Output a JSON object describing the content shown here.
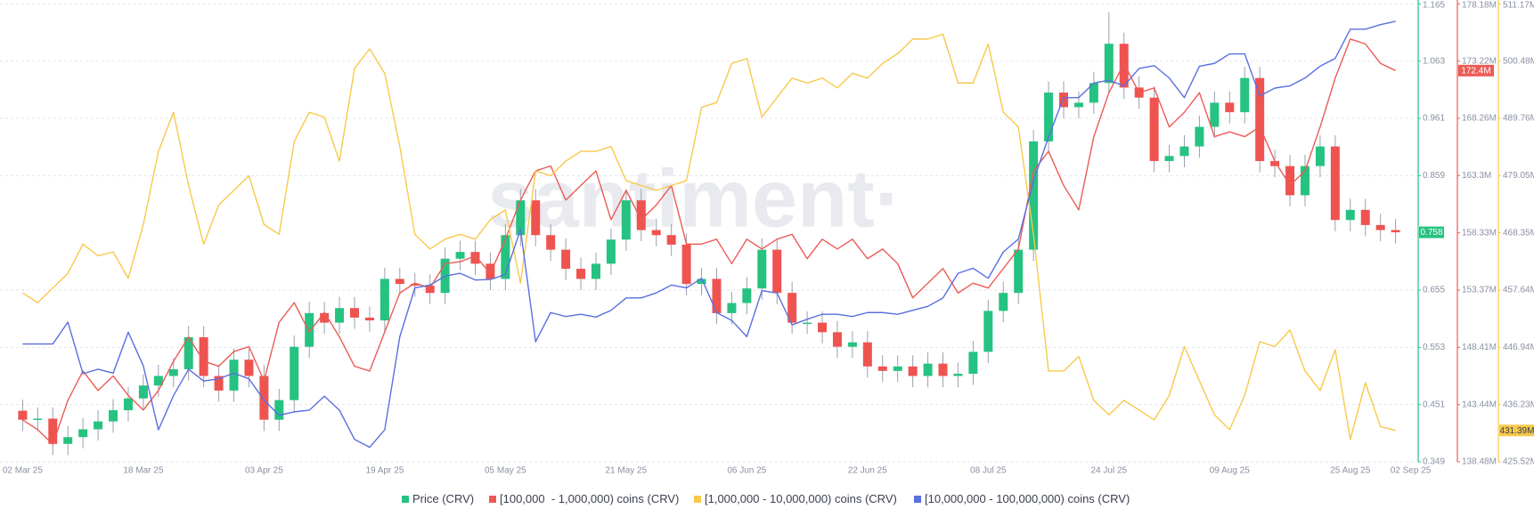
{
  "chart_data": {
    "type": "candlestick",
    "watermark": "santiment·",
    "grid": true,
    "x": [
      "2025-03-02",
      "2025-03-04",
      "2025-03-06",
      "2025-03-08",
      "2025-03-10",
      "2025-03-12",
      "2025-03-14",
      "2025-03-16",
      "2025-03-18",
      "2025-03-20",
      "2025-03-22",
      "2025-03-24",
      "2025-03-26",
      "2025-03-28",
      "2025-03-30",
      "2025-04-01",
      "2025-04-03",
      "2025-04-05",
      "2025-04-07",
      "2025-04-09",
      "2025-04-11",
      "2025-04-13",
      "2025-04-15",
      "2025-04-17",
      "2025-04-19",
      "2025-04-21",
      "2025-04-23",
      "2025-04-25",
      "2025-04-27",
      "2025-04-29",
      "2025-05-01",
      "2025-05-03",
      "2025-05-05",
      "2025-05-07",
      "2025-05-09",
      "2025-05-11",
      "2025-05-13",
      "2025-05-15",
      "2025-05-17",
      "2025-05-19",
      "2025-05-21",
      "2025-05-23",
      "2025-05-25",
      "2025-05-27",
      "2025-05-29",
      "2025-05-31",
      "2025-06-02",
      "2025-06-04",
      "2025-06-06",
      "2025-06-08",
      "2025-06-10",
      "2025-06-12",
      "2025-06-14",
      "2025-06-16",
      "2025-06-18",
      "2025-06-20",
      "2025-06-22",
      "2025-06-24",
      "2025-06-26",
      "2025-06-28",
      "2025-06-30",
      "2025-07-02",
      "2025-07-04",
      "2025-07-06",
      "2025-07-08",
      "2025-07-10",
      "2025-07-12",
      "2025-07-14",
      "2025-07-16",
      "2025-07-18",
      "2025-07-20",
      "2025-07-22",
      "2025-07-24",
      "2025-07-26",
      "2025-07-28",
      "2025-07-30",
      "2025-08-01",
      "2025-08-03",
      "2025-08-05",
      "2025-08-07",
      "2025-08-09",
      "2025-08-11",
      "2025-08-13",
      "2025-08-15",
      "2025-08-17",
      "2025-08-19",
      "2025-08-21",
      "2025-08-23",
      "2025-08-25",
      "2025-08-27",
      "2025-08-29",
      "2025-08-31"
    ],
    "xlim": [
      "2025-02-27",
      "2025-09-03"
    ],
    "xticks": [
      {
        "value": "2025-03-02",
        "label": "02 Mar 25"
      },
      {
        "value": "2025-03-18",
        "label": "18 Mar 25"
      },
      {
        "value": "2025-04-03",
        "label": "03 Apr 25"
      },
      {
        "value": "2025-04-19",
        "label": "19 Apr 25"
      },
      {
        "value": "2025-05-05",
        "label": "05 May 25"
      },
      {
        "value": "2025-05-21",
        "label": "21 May 25"
      },
      {
        "value": "2025-06-06",
        "label": "06 Jun 25"
      },
      {
        "value": "2025-06-22",
        "label": "22 Jun 25"
      },
      {
        "value": "2025-07-08",
        "label": "08 Jul 25"
      },
      {
        "value": "2025-07-24",
        "label": "24 Jul 25"
      },
      {
        "value": "2025-08-09",
        "label": "09 Aug 25"
      },
      {
        "value": "2025-08-25",
        "label": "25 Aug 25"
      },
      {
        "value": "2025-09-02",
        "label": "02 Sep 25"
      }
    ],
    "ylim": [
      0.349,
      1.165
    ],
    "yticks": [
      0.349,
      0.451,
      0.553,
      0.655,
      0.859,
      0.961,
      1.063,
      1.165
    ],
    "y2lim": [
      138480000,
      178180000
    ],
    "y2ticks": [
      {
        "value": 138480000,
        "label": "138.48M"
      },
      {
        "value": 143440000,
        "label": "143.44M"
      },
      {
        "value": 148410000,
        "label": "148.41M"
      },
      {
        "value": 153370000,
        "label": "153.37M"
      },
      {
        "value": 158330000,
        "label": "158.33M"
      },
      {
        "value": 163300000,
        "label": "163.3M"
      },
      {
        "value": 168260000,
        "label": "168.26M"
      },
      {
        "value": 173220000,
        "label": "173.22M"
      },
      {
        "value": 178180000,
        "label": "178.18M"
      }
    ],
    "y3lim": [
      425520000,
      511170000
    ],
    "y3ticks": [
      {
        "value": 425520000,
        "label": "425.52M"
      },
      {
        "value": 436230000,
        "label": "436.23M"
      },
      {
        "value": 446940000,
        "label": "446.94M"
      },
      {
        "value": 457640000,
        "label": "457.64M"
      },
      {
        "value": 468350000,
        "label": "468.35M"
      },
      {
        "value": 479050000,
        "label": "479.05M"
      },
      {
        "value": 489760000,
        "label": "489.76M"
      },
      {
        "value": 500480000,
        "label": "500.48M"
      },
      {
        "value": 511170000,
        "label": "511.17M"
      }
    ],
    "series": [
      {
        "name": "Price (CRV)",
        "type": "candlestick",
        "axis": "y",
        "color": "#26c281",
        "down_color": "#ef5350",
        "current": 0.758,
        "open": [
          0.44,
          0.424,
          0.426,
          0.381,
          0.393,
          0.407,
          0.421,
          0.441,
          0.462,
          0.485,
          0.502,
          0.514,
          0.571,
          0.502,
          0.476,
          0.531,
          0.502,
          0.424,
          0.459,
          0.554,
          0.614,
          0.597,
          0.623,
          0.606,
          0.601,
          0.675,
          0.666,
          0.663,
          0.65,
          0.711,
          0.723,
          0.702,
          0.675,
          0.753,
          0.815,
          0.753,
          0.727,
          0.693,
          0.675,
          0.702,
          0.745,
          0.815,
          0.762,
          0.753,
          0.736,
          0.666,
          0.675,
          0.614,
          0.632,
          0.658,
          0.727,
          0.65,
          0.597,
          0.597,
          0.58,
          0.554,
          0.562,
          0.519,
          0.511,
          0.519,
          0.502,
          0.524,
          0.502,
          0.506,
          0.545,
          0.618,
          0.65,
          0.727,
          0.92,
          1.007,
          0.981,
          0.989,
          1.024,
          1.094,
          1.016,
          0.998,
          0.885,
          0.894,
          0.911,
          0.946,
          0.989,
          0.972,
          1.033,
          0.885,
          0.876,
          0.824,
          0.876,
          0.911,
          0.78,
          0.798,
          0.771,
          0.762
        ],
        "high": [
          0.46,
          0.446,
          0.446,
          0.413,
          0.427,
          0.441,
          0.461,
          0.482,
          0.505,
          0.522,
          0.534,
          0.591,
          0.591,
          0.522,
          0.551,
          0.551,
          0.522,
          0.479,
          0.574,
          0.634,
          0.634,
          0.643,
          0.643,
          0.626,
          0.695,
          0.695,
          0.686,
          0.683,
          0.731,
          0.743,
          0.743,
          0.722,
          0.773,
          0.835,
          0.835,
          0.773,
          0.747,
          0.713,
          0.722,
          0.765,
          0.835,
          0.835,
          0.782,
          0.773,
          0.756,
          0.695,
          0.695,
          0.652,
          0.678,
          0.747,
          0.747,
          0.67,
          0.617,
          0.617,
          0.6,
          0.582,
          0.582,
          0.539,
          0.539,
          0.539,
          0.544,
          0.544,
          0.526,
          0.565,
          0.638,
          0.67,
          0.747,
          0.94,
          1.027,
          1.027,
          1.009,
          1.044,
          1.15,
          1.114,
          1.036,
          1.018,
          0.914,
          0.931,
          0.966,
          1.009,
          1.009,
          1.053,
          1.053,
          0.905,
          0.896,
          0.896,
          0.931,
          0.931,
          0.818,
          0.818,
          0.791,
          0.782
        ],
        "low": [
          0.404,
          0.404,
          0.361,
          0.361,
          0.373,
          0.387,
          0.401,
          0.421,
          0.442,
          0.465,
          0.482,
          0.494,
          0.482,
          0.456,
          0.456,
          0.482,
          0.404,
          0.404,
          0.439,
          0.534,
          0.577,
          0.577,
          0.586,
          0.581,
          0.581,
          0.646,
          0.643,
          0.63,
          0.63,
          0.691,
          0.682,
          0.655,
          0.655,
          0.733,
          0.733,
          0.707,
          0.673,
          0.655,
          0.655,
          0.682,
          0.725,
          0.742,
          0.733,
          0.716,
          0.646,
          0.646,
          0.594,
          0.594,
          0.612,
          0.638,
          0.63,
          0.577,
          0.577,
          0.56,
          0.534,
          0.534,
          0.499,
          0.491,
          0.491,
          0.482,
          0.482,
          0.482,
          0.482,
          0.486,
          0.525,
          0.598,
          0.63,
          0.707,
          0.9,
          0.961,
          0.961,
          0.969,
          1.004,
          0.996,
          0.978,
          0.865,
          0.865,
          0.874,
          0.891,
          0.926,
          0.952,
          0.952,
          0.865,
          0.856,
          0.804,
          0.804,
          0.856,
          0.76,
          0.76,
          0.751,
          0.742,
          0.738
        ],
        "close": [
          0.424,
          0.426,
          0.381,
          0.393,
          0.407,
          0.421,
          0.441,
          0.462,
          0.485,
          0.502,
          0.514,
          0.571,
          0.502,
          0.476,
          0.531,
          0.502,
          0.424,
          0.459,
          0.554,
          0.614,
          0.597,
          0.623,
          0.606,
          0.601,
          0.675,
          0.666,
          0.663,
          0.65,
          0.711,
          0.723,
          0.702,
          0.675,
          0.753,
          0.815,
          0.753,
          0.727,
          0.693,
          0.675,
          0.702,
          0.745,
          0.815,
          0.762,
          0.753,
          0.736,
          0.666,
          0.675,
          0.614,
          0.632,
          0.658,
          0.727,
          0.65,
          0.597,
          0.597,
          0.58,
          0.554,
          0.562,
          0.519,
          0.511,
          0.519,
          0.502,
          0.524,
          0.502,
          0.506,
          0.545,
          0.618,
          0.65,
          0.727,
          0.92,
          1.007,
          0.981,
          0.989,
          1.024,
          1.094,
          1.016,
          0.998,
          0.885,
          0.894,
          0.911,
          0.946,
          0.989,
          0.972,
          1.033,
          0.885,
          0.876,
          0.824,
          0.876,
          0.911,
          0.78,
          0.798,
          0.771,
          0.762,
          0.758
        ]
      },
      {
        "name": "[100,000  - 1,000,000) coins (CRV)",
        "type": "line",
        "axis": "y2",
        "color": "#ec5b55",
        "current": {
          "value": 172400000,
          "label": "172.4M"
        },
        "values": [
          142120000,
          141270000,
          140000000,
          143810000,
          146350000,
          144660000,
          145930000,
          144240000,
          142970000,
          144660000,
          147200000,
          149310000,
          147200000,
          146770000,
          148040000,
          148470000,
          145510000,
          150580000,
          152280000,
          149740000,
          151430000,
          149310000,
          146770000,
          146350000,
          149740000,
          153120000,
          153970000,
          153550000,
          155660000,
          155830000,
          156340000,
          154820000,
          157780000,
          161170000,
          163700000,
          164130000,
          161170000,
          162440000,
          163700000,
          159470000,
          162010000,
          159470000,
          160740000,
          162440000,
          157360000,
          157360000,
          157780000,
          155660000,
          157780000,
          156930000,
          157780000,
          158200000,
          156090000,
          157780000,
          156930000,
          157780000,
          156090000,
          156930000,
          155660000,
          152700000,
          153970000,
          155240000,
          153120000,
          153970000,
          153550000,
          155240000,
          156930000,
          163700000,
          165400000,
          162440000,
          160320000,
          166670000,
          170480000,
          173020000,
          170480000,
          170900000,
          167510000,
          168780000,
          170480000,
          166670000,
          167090000,
          166670000,
          167510000,
          164550000,
          162440000,
          163700000,
          167510000,
          171750000,
          175130000,
          174710000,
          173020000,
          172400000
        ]
      },
      {
        "name": "[1,000,000 - 10,000,000) coins (CRV)",
        "type": "line",
        "axis": "y3",
        "color": "#f7c94b",
        "current": {
          "value": 431390000,
          "label": "431.39M"
        },
        "values": [
          457110000,
          455290000,
          458030000,
          460770000,
          466250000,
          464050000,
          464780000,
          459850000,
          469900000,
          483590000,
          490900000,
          477200000,
          466250000,
          473550000,
          476290000,
          479030000,
          469900000,
          468070000,
          485420000,
          490900000,
          489990000,
          481770000,
          499120000,
          502770000,
          498200000,
          484510000,
          468070000,
          465330000,
          467160000,
          468070000,
          467160000,
          470810000,
          472640000,
          458940000,
          479940000,
          479030000,
          481770000,
          483590000,
          483590000,
          484510000,
          478120000,
          477200000,
          476290000,
          477200000,
          478120000,
          491810000,
          492730000,
          500030000,
          500940000,
          489990000,
          493640000,
          497290000,
          496380000,
          497290000,
          495460000,
          498200000,
          497290000,
          500030000,
          501860000,
          504600000,
          504600000,
          505510000,
          496380000,
          496380000,
          503680000,
          490900000,
          488160000,
          468070000,
          442500000,
          442500000,
          445240000,
          437030000,
          434290000,
          437030000,
          435200000,
          433370000,
          437940000,
          447070000,
          440680000,
          434290000,
          431550000,
          437940000,
          447980000,
          447070000,
          450170000,
          442500000,
          438850000,
          446520000,
          429720000,
          440310000,
          432100000,
          431390000
        ]
      },
      {
        "name": "[10,000,000 - 100,000,000) coins (CRV)",
        "type": "line",
        "axis": "y",
        "color": "#5a6fe0",
        "values": [
          0.559,
          0.559,
          0.559,
          0.598,
          0.506,
          0.514,
          0.507,
          0.58,
          0.52,
          0.406,
          0.467,
          0.514,
          0.493,
          0.497,
          0.507,
          0.497,
          0.459,
          0.432,
          0.438,
          0.441,
          0.466,
          0.441,
          0.389,
          0.375,
          0.406,
          0.572,
          0.659,
          0.664,
          0.68,
          0.685,
          0.673,
          0.674,
          0.683,
          0.763,
          0.563,
          0.615,
          0.608,
          0.612,
          0.607,
          0.619,
          0.641,
          0.641,
          0.65,
          0.664,
          0.659,
          0.676,
          0.615,
          0.601,
          0.572,
          0.654,
          0.65,
          0.593,
          0.603,
          0.612,
          0.612,
          0.608,
          0.615,
          0.615,
          0.612,
          0.619,
          0.626,
          0.641,
          0.685,
          0.694,
          0.676,
          0.723,
          0.746,
          0.85,
          0.928,
          0.998,
          0.998,
          1.024,
          1.029,
          1.019,
          1.05,
          1.055,
          1.033,
          0.998,
          1.054,
          1.059,
          1.076,
          1.076,
          1.001,
          1.015,
          1.019,
          1.033,
          1.054,
          1.068,
          1.12,
          1.12,
          1.128,
          1.134
        ]
      }
    ]
  }
}
